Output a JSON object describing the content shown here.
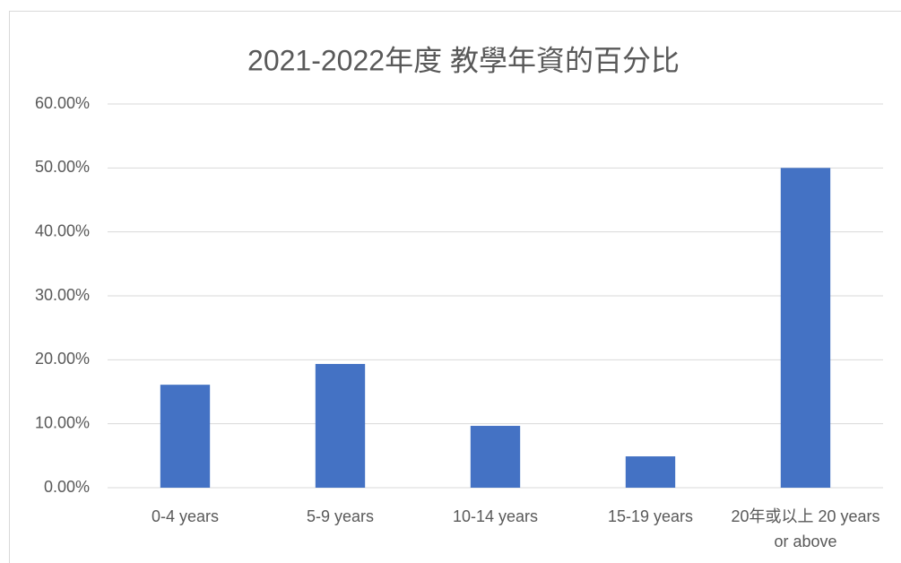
{
  "chart_data": {
    "type": "bar",
    "title": "2021-2022年度 教學年資的百分比",
    "categories": [
      "0-4 years",
      "5-9 years",
      "10-14 years",
      "15-19 years",
      "20年或以上 20 years or above"
    ],
    "values": [
      16.1,
      19.35,
      9.67,
      4.9,
      50
    ],
    "color": "#4472c4",
    "ylim": [
      0,
      60
    ],
    "yticks": [
      {
        "value": 0,
        "label": "0.00%"
      },
      {
        "value": 10,
        "label": "10.00%"
      },
      {
        "value": 20,
        "label": "20.00%"
      },
      {
        "value": 30,
        "label": "30.00%"
      },
      {
        "value": 40,
        "label": "40.00%"
      },
      {
        "value": 50,
        "label": "50.00%"
      },
      {
        "value": 60,
        "label": "60.00%"
      }
    ],
    "grid": true
  }
}
